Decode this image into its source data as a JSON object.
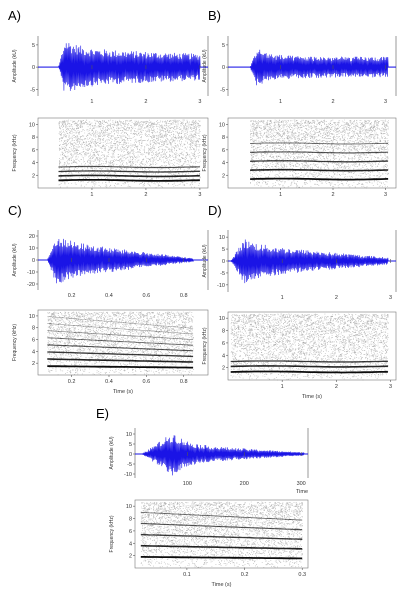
{
  "chart_data": [
    {
      "type": "line",
      "panel": "A)",
      "waveform": {
        "ylabel": "Amplitude (kU)",
        "yticks": [
          -5,
          0,
          5
        ],
        "ylim": [
          -6.5,
          7
        ],
        "xticks": [
          "1",
          "2",
          "3"
        ],
        "xlim": [
          0,
          3.15
        ],
        "envelope": {
          "start": 0.38,
          "end": 3.0,
          "peak_at": 0.5,
          "peak": 6.5,
          "sustain": 4.3,
          "end_level": 3.0
        }
      },
      "spectrogram": {
        "ylabel": "Frequency (kHz)",
        "yticks": [
          2,
          4,
          6,
          8,
          10
        ],
        "ylim": [
          0,
          11
        ],
        "xticks": [
          "1",
          "2",
          "3"
        ],
        "xlim": [
          0,
          3.15
        ],
        "time_range": [
          0.38,
          3.0
        ],
        "bands_khz": [
          1.2,
          1.9,
          2.6,
          3.3
        ]
      }
    },
    {
      "type": "line",
      "panel": "B)",
      "waveform": {
        "ylabel": "Amplitude (kU)",
        "yticks": [
          -5,
          0,
          5
        ],
        "ylim": [
          -6.5,
          7
        ],
        "xticks": [
          "1",
          "2",
          "3"
        ],
        "xlim": [
          0,
          3.2
        ],
        "envelope": {
          "start": 0.42,
          "end": 3.05,
          "peak_at": 0.55,
          "peak": 4.5,
          "sustain": 2.5,
          "end_level": 2.3
        }
      },
      "spectrogram": {
        "ylabel": "Frequency (kHz)",
        "yticks": [
          2,
          4,
          6,
          8,
          10
        ],
        "ylim": [
          0,
          11
        ],
        "xticks": [
          "1",
          "2",
          "3"
        ],
        "xlim": [
          0,
          3.2
        ],
        "time_range": [
          0.42,
          3.05
        ],
        "bands_khz": [
          1.4,
          2.8,
          4.2,
          5.6,
          7.0
        ]
      }
    },
    {
      "type": "line",
      "panel": "C)",
      "waveform": {
        "ylabel": "Amplitude (kU)",
        "yticks": [
          -20,
          -10,
          0,
          10,
          20
        ],
        "ylim": [
          -25,
          25
        ],
        "xticks": [
          "0.2",
          "0.4",
          "0.6",
          "0.8"
        ],
        "xlim": [
          0.02,
          0.93
        ],
        "envelope": {
          "start": 0.07,
          "end": 0.85,
          "peak_at": 0.12,
          "peak": 21,
          "sustain": 16,
          "end_level": 1.5
        }
      },
      "spectrogram": {
        "ylabel": "Frequency (kHz)",
        "yticks": [
          2,
          4,
          6,
          8,
          10
        ],
        "ylim": [
          0,
          11
        ],
        "xticks": [
          "0.2",
          "0.4",
          "0.6",
          "0.8"
        ],
        "xlim": [
          0.02,
          0.93
        ],
        "xlabel": "Time (s)",
        "time_range": [
          0.07,
          0.85
        ],
        "bands_khz": [
          1.3,
          2.3,
          3.3,
          4.3,
          5.3,
          6.3,
          7.3,
          8.3
        ]
      }
    },
    {
      "type": "line",
      "panel": "D)",
      "waveform": {
        "ylabel": "Amplitude (kU)",
        "yticks": [
          -10,
          -5,
          0,
          5,
          10
        ],
        "ylim": [
          -13,
          13
        ],
        "xticks": [
          "1",
          "2",
          "3"
        ],
        "xlim": [
          0,
          3.1
        ],
        "envelope": {
          "start": 0.05,
          "end": 2.95,
          "peak_at": 0.3,
          "peak": 9.5,
          "sustain": 7,
          "end_level": 1.5
        }
      },
      "spectrogram": {
        "ylabel": "Frequency (kHz)",
        "yticks": [
          2,
          4,
          6,
          8,
          10
        ],
        "ylim": [
          0,
          11
        ],
        "xticks": [
          "1",
          "2",
          "3"
        ],
        "xlim": [
          0,
          3.1
        ],
        "xlabel": "Time (s)",
        "time_range": [
          0.05,
          2.95
        ],
        "bands_khz": [
          1.3,
          2.2,
          3.0
        ]
      }
    },
    {
      "type": "line",
      "panel": "E)",
      "waveform": {
        "ylabel": "Amplitude (kU)",
        "yticks": [
          -10,
          -5,
          0,
          5,
          10
        ],
        "ylim": [
          -12,
          13
        ],
        "xticks": [
          "100",
          "200",
          "300"
        ],
        "xlim": [
          8,
          312
        ],
        "xlabel": "Time",
        "envelope": {
          "start": 20,
          "end": 305,
          "peak_at": 75,
          "peak": 11,
          "sustain": 5,
          "end_level": 0.8
        }
      },
      "spectrogram": {
        "ylabel": "Frequency (kHz)",
        "yticks": [
          2,
          4,
          6,
          8,
          10
        ],
        "ylim": [
          0,
          11
        ],
        "xticks": [
          "0.1",
          "0.2",
          "0.3"
        ],
        "xlim": [
          0.01,
          0.31
        ],
        "xlabel": "Time (s)",
        "time_range": [
          0.02,
          0.3
        ],
        "bands_khz": [
          1.6,
          3.2,
          4.8,
          6.4,
          8.0
        ]
      }
    }
  ],
  "style": {
    "wave_color": "#1a14e6",
    "spec_color": "#000000"
  }
}
